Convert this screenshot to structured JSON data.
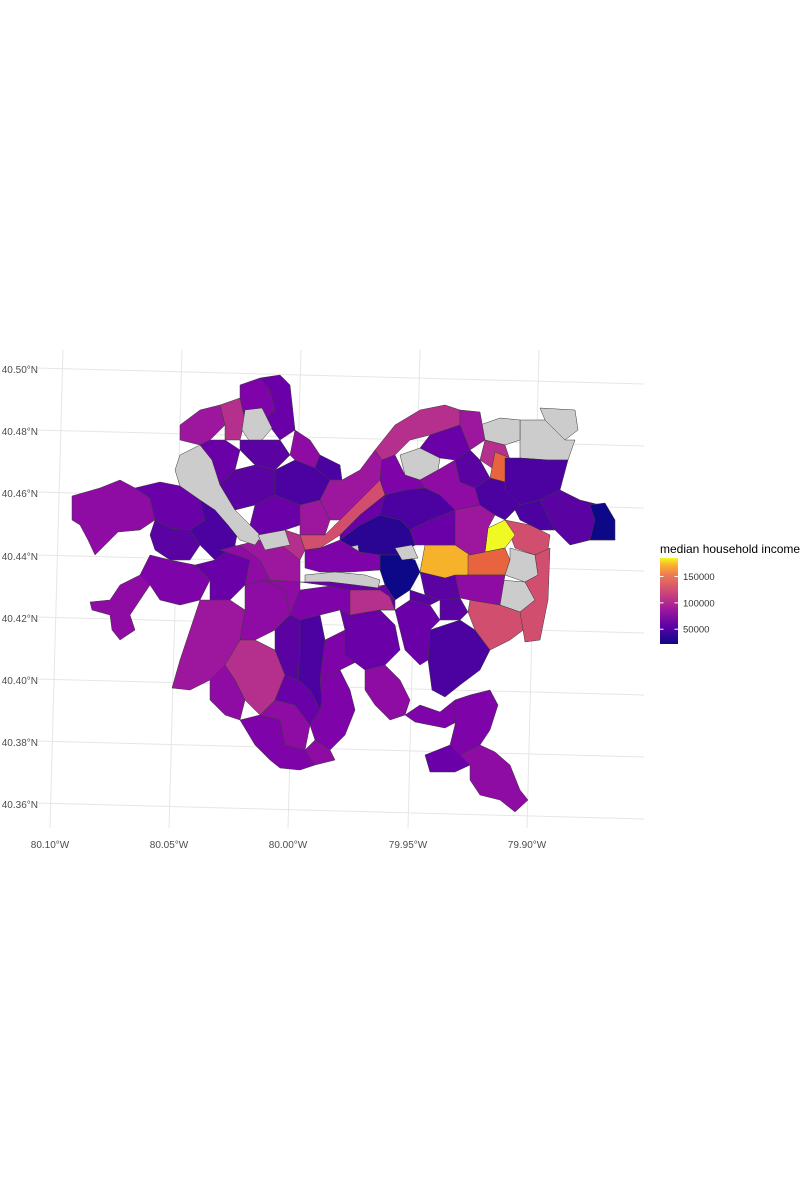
{
  "chart_data": {
    "type": "choropleth",
    "x_ticks": [
      "80.10°W",
      "80.05°W",
      "80.00°W",
      "79.95°W",
      "79.90°W"
    ],
    "y_ticks": [
      "40.50°N",
      "40.48°N",
      "40.46°N",
      "40.44°N",
      "40.42°N",
      "40.40°N",
      "40.38°N",
      "40.36°N"
    ],
    "legend": {
      "title": "median household income",
      "ticks": [
        "150000",
        "100000",
        "50000"
      ],
      "tick_values": [
        150000,
        100000,
        50000
      ],
      "min": 22000,
      "max": 185000,
      "palette": "plasma",
      "na_color": "#cccccc"
    },
    "grid": true
  }
}
